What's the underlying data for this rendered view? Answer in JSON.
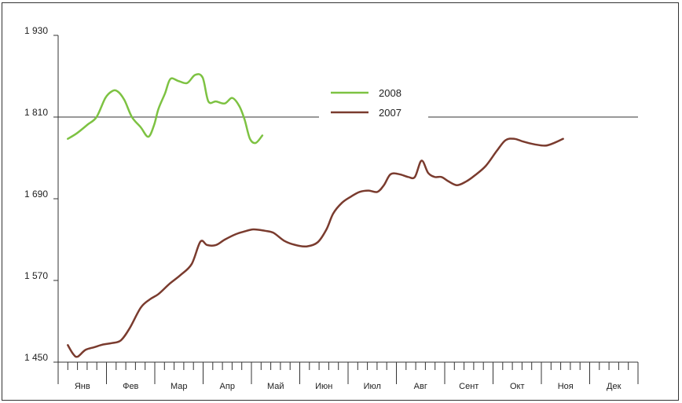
{
  "chart_data": {
    "type": "line",
    "title": "",
    "xlabel": "",
    "ylabel": "",
    "ylim": [
      1450,
      1930
    ],
    "y_ticks": [
      "1 450",
      "1 570",
      "1 690",
      "1 810",
      "1 930"
    ],
    "y_tick_values": [
      1450,
      1570,
      1690,
      1810,
      1930
    ],
    "months": [
      "Янв",
      "Фев",
      "Мар",
      "Апр",
      "Май",
      "Июн",
      "Июл",
      "Авг",
      "Сент",
      "Окт",
      "Ноя",
      "Дек"
    ],
    "grid": "reference line at 1810 only",
    "legend_position": "top-center",
    "series": [
      {
        "name": "2008",
        "color": "#7dc242",
        "points": [
          [
            0.0,
            1778
          ],
          [
            0.2,
            1786
          ],
          [
            0.45,
            1799
          ],
          [
            0.65,
            1810
          ],
          [
            0.85,
            1838
          ],
          [
            1.0,
            1848
          ],
          [
            1.12,
            1848
          ],
          [
            1.28,
            1835
          ],
          [
            1.45,
            1810
          ],
          [
            1.65,
            1795
          ],
          [
            1.82,
            1781
          ],
          [
            1.95,
            1798
          ],
          [
            2.05,
            1822
          ],
          [
            2.2,
            1845
          ],
          [
            2.32,
            1866
          ],
          [
            2.5,
            1863
          ],
          [
            2.7,
            1860
          ],
          [
            2.88,
            1872
          ],
          [
            3.05,
            1868
          ],
          [
            3.18,
            1833
          ],
          [
            3.35,
            1833
          ],
          [
            3.55,
            1830
          ],
          [
            3.72,
            1838
          ],
          [
            3.88,
            1826
          ],
          [
            4.0,
            1806
          ],
          [
            4.12,
            1778
          ],
          [
            4.25,
            1772
          ],
          [
            4.4,
            1783
          ]
        ]
      },
      {
        "name": "2007",
        "color": "#7a3b2e",
        "points": [
          [
            0.0,
            1475
          ],
          [
            0.12,
            1462
          ],
          [
            0.22,
            1458
          ],
          [
            0.4,
            1468
          ],
          [
            0.6,
            1472
          ],
          [
            0.8,
            1476
          ],
          [
            1.0,
            1478
          ],
          [
            1.2,
            1482
          ],
          [
            1.4,
            1500
          ],
          [
            1.65,
            1530
          ],
          [
            1.85,
            1542
          ],
          [
            2.05,
            1550
          ],
          [
            2.3,
            1565
          ],
          [
            2.55,
            1578
          ],
          [
            2.8,
            1594
          ],
          [
            3.0,
            1627
          ],
          [
            3.15,
            1622
          ],
          [
            3.35,
            1622
          ],
          [
            3.55,
            1630
          ],
          [
            3.8,
            1638
          ],
          [
            4.0,
            1642
          ],
          [
            4.2,
            1645
          ],
          [
            4.45,
            1643
          ],
          [
            4.65,
            1640
          ],
          [
            4.9,
            1628
          ],
          [
            5.15,
            1622
          ],
          [
            5.4,
            1620
          ],
          [
            5.65,
            1626
          ],
          [
            5.85,
            1645
          ],
          [
            6.0,
            1668
          ],
          [
            6.2,
            1684
          ],
          [
            6.4,
            1693
          ],
          [
            6.6,
            1700
          ],
          [
            6.8,
            1702
          ],
          [
            7.0,
            1700
          ],
          [
            7.15,
            1710
          ],
          [
            7.3,
            1726
          ],
          [
            7.5,
            1726
          ],
          [
            7.7,
            1722
          ],
          [
            7.85,
            1722
          ],
          [
            8.0,
            1746
          ],
          [
            8.15,
            1728
          ],
          [
            8.3,
            1722
          ],
          [
            8.45,
            1722
          ],
          [
            8.6,
            1716
          ],
          [
            8.8,
            1710
          ],
          [
            9.0,
            1715
          ],
          [
            9.2,
            1724
          ],
          [
            9.45,
            1738
          ],
          [
            9.7,
            1760
          ],
          [
            9.9,
            1776
          ],
          [
            10.1,
            1778
          ],
          [
            10.3,
            1774
          ],
          [
            10.55,
            1770
          ],
          [
            10.8,
            1768
          ],
          [
            11.0,
            1772
          ],
          [
            11.2,
            1778
          ]
        ]
      }
    ]
  }
}
